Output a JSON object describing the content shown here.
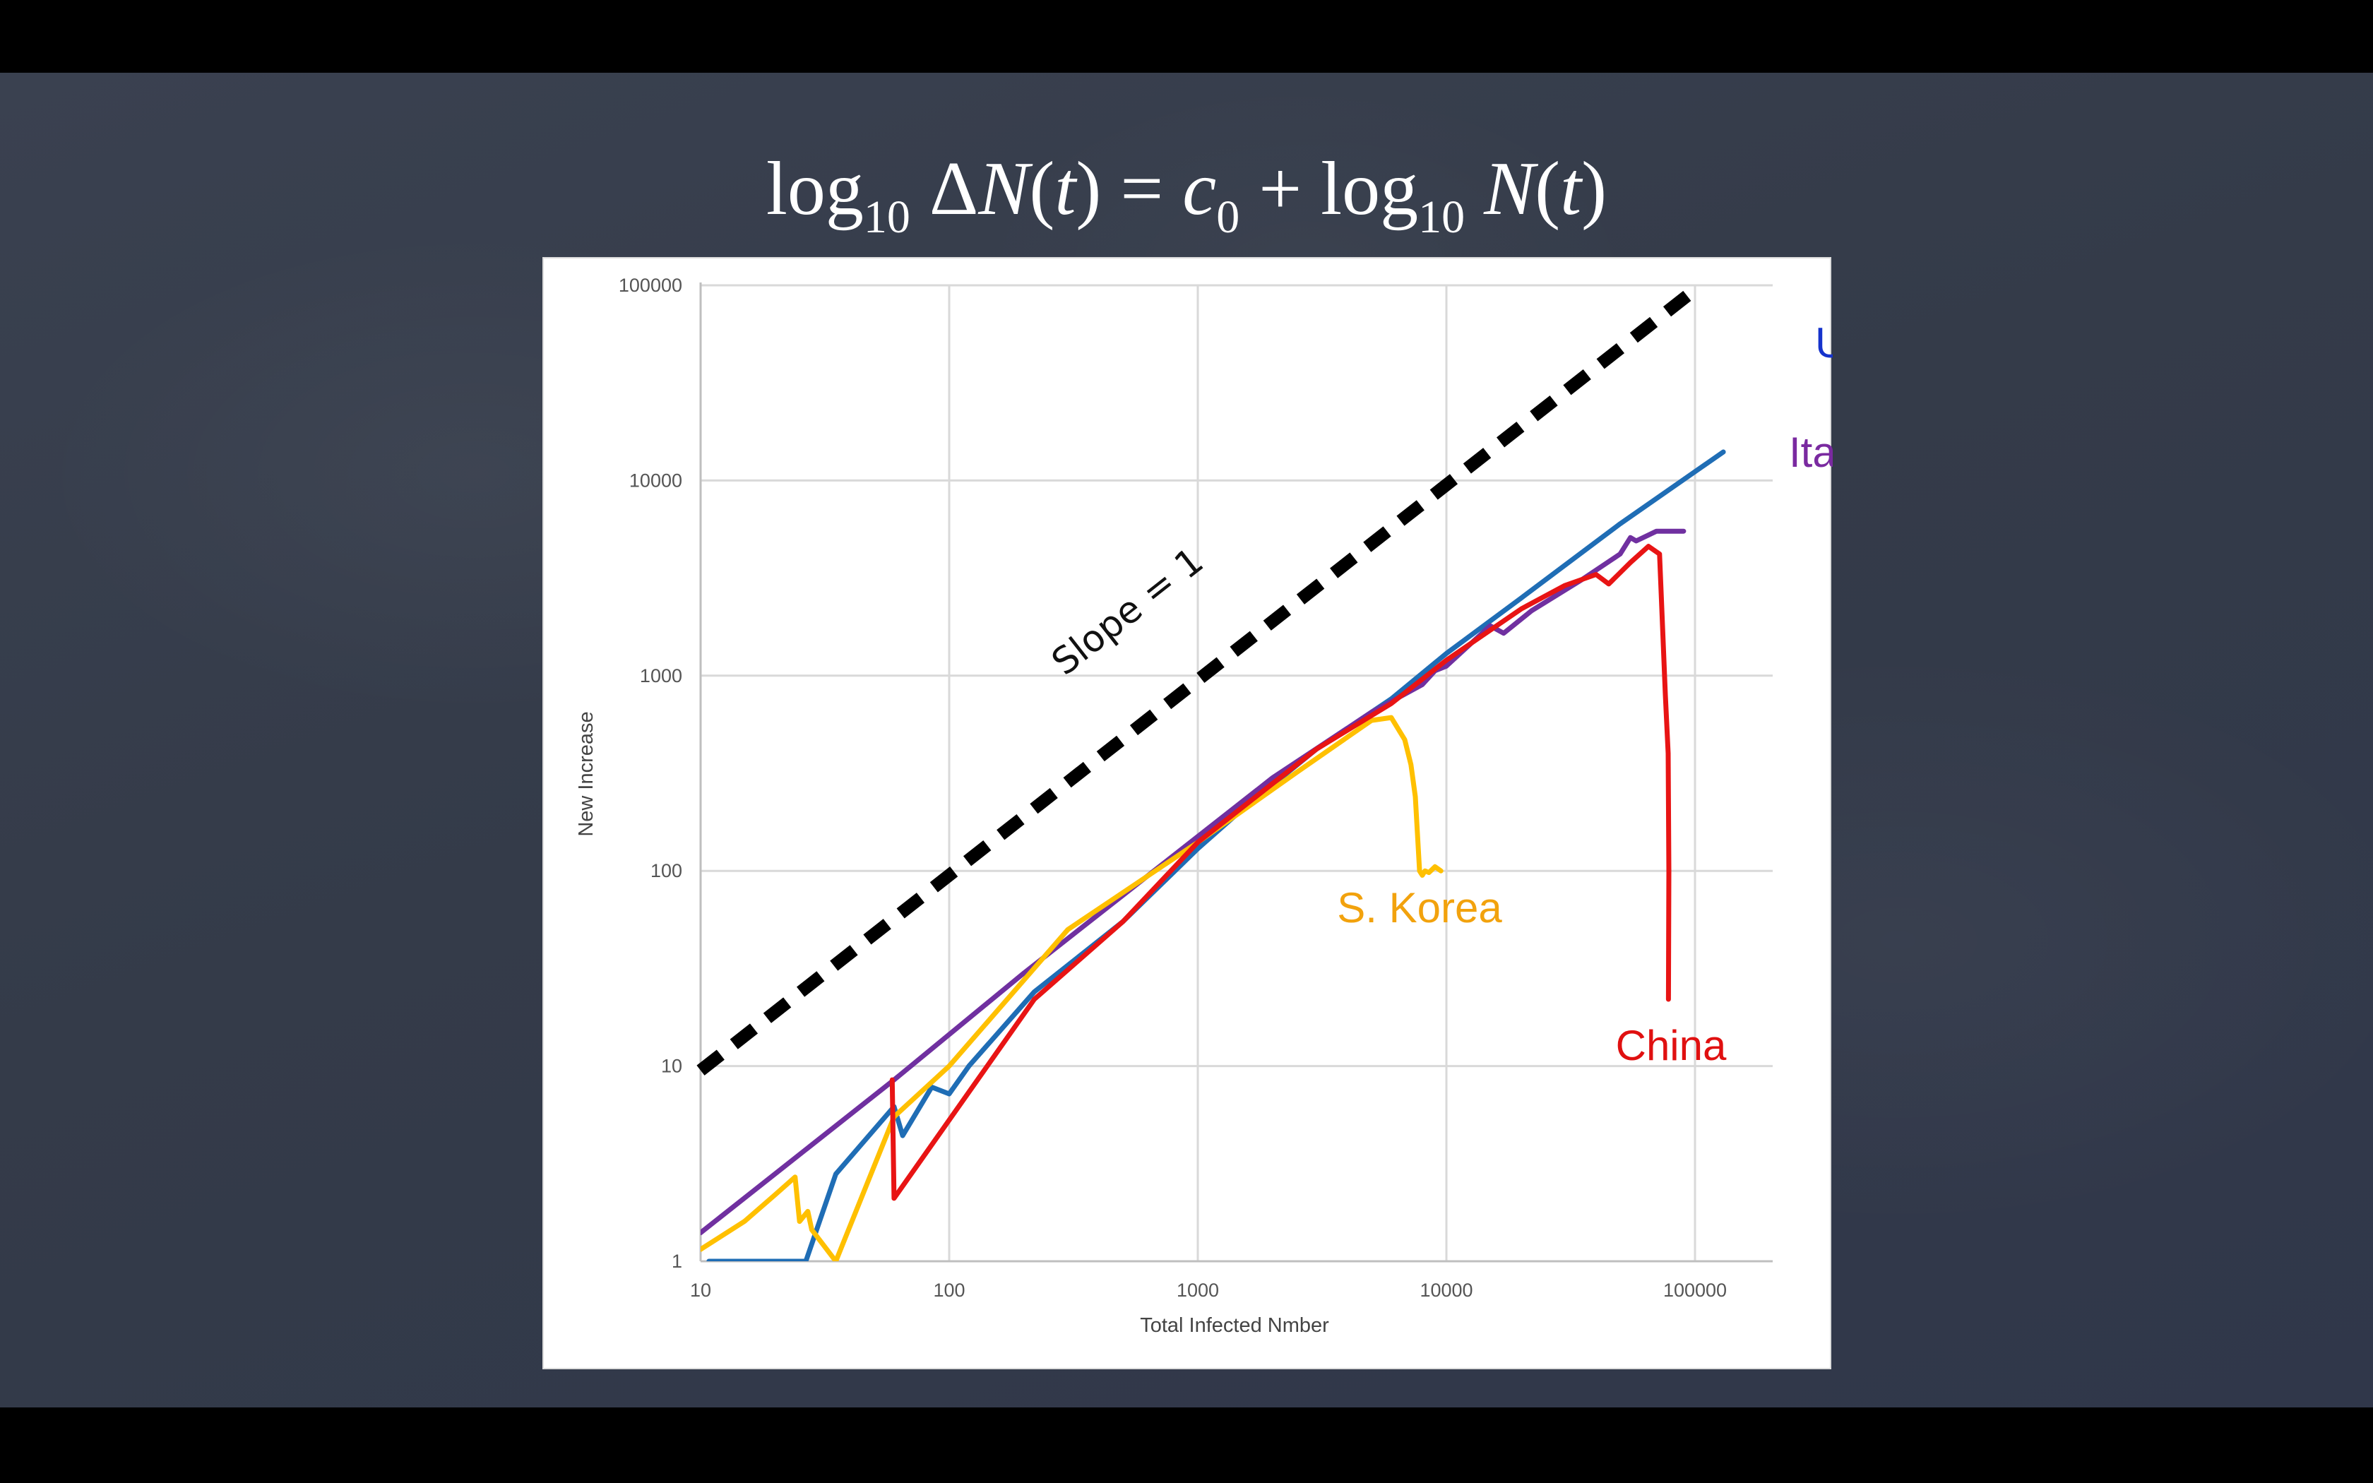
{
  "slide": {
    "background": "#363d4b",
    "title": {
      "parts": [
        {
          "text": "log",
          "style": "normal"
        },
        {
          "text": "10",
          "style": "sub"
        },
        {
          "text": " Δ",
          "style": "normal"
        },
        {
          "text": "N",
          "style": "it"
        },
        {
          "text": "(",
          "style": "normal"
        },
        {
          "text": "t",
          "style": "it"
        },
        {
          "text": ") = ",
          "style": "normal"
        },
        {
          "text": "c",
          "style": "it"
        },
        {
          "text": "0",
          "style": "sub"
        },
        {
          "text": " + log",
          "style": "normal"
        },
        {
          "text": "10",
          "style": "sub"
        },
        {
          "text": " ",
          "style": "normal"
        },
        {
          "text": "N",
          "style": "it"
        },
        {
          "text": "(",
          "style": "normal"
        },
        {
          "text": "t",
          "style": "it"
        },
        {
          "text": ")",
          "style": "normal"
        }
      ]
    }
  },
  "chart_data": {
    "type": "line",
    "xlabel": "Total Infected Nmber",
    "ylabel": "New Increase",
    "x_scale": "log",
    "y_scale": "log",
    "xlim": [
      10,
      200000
    ],
    "ylim": [
      1,
      100000
    ],
    "x_ticks": [
      "10",
      "100",
      "1000",
      "10000",
      "100000"
    ],
    "y_ticks": [
      "1",
      "10",
      "100",
      "1000",
      "10000",
      "100000"
    ],
    "grid": true,
    "legend": "inline labels",
    "reference_line": {
      "label": "Slope = 1",
      "style": "dashed",
      "color": "#000000",
      "points": [
        [
          10,
          9.5
        ],
        [
          100000,
          95000
        ]
      ]
    },
    "series": [
      {
        "name": "US",
        "color": "#1f6db5",
        "label_color": "#1533cc",
        "points": [
          [
            10.8,
            1.0
          ],
          [
            11.6,
            1.0
          ],
          [
            26.5,
            1.0
          ],
          [
            35,
            2.8
          ],
          [
            60,
            6.2
          ],
          [
            65,
            4.4
          ],
          [
            85,
            7.8
          ],
          [
            100,
            7.2
          ],
          [
            120,
            10
          ],
          [
            220,
            24
          ],
          [
            500,
            55
          ],
          [
            1000,
            130
          ],
          [
            1500,
            205
          ],
          [
            3000,
            420
          ],
          [
            6000,
            760
          ],
          [
            10000,
            1300
          ],
          [
            20000,
            2500
          ],
          [
            50000,
            6000
          ],
          [
            130000,
            14000
          ]
        ]
      },
      {
        "name": "Italy",
        "color": "#7030a0",
        "label_color": "#7a2aa0",
        "points": [
          [
            10,
            1.4
          ],
          [
            60,
            8.5
          ],
          [
            200,
            30
          ],
          [
            700,
            105
          ],
          [
            2000,
            300
          ],
          [
            5000,
            650
          ],
          [
            8000,
            900
          ],
          [
            9000,
            1060
          ],
          [
            10000,
            1120
          ],
          [
            15000,
            1800
          ],
          [
            17000,
            1650
          ],
          [
            22000,
            2150
          ],
          [
            35000,
            3100
          ],
          [
            50000,
            4200
          ],
          [
            55000,
            5100
          ],
          [
            58000,
            4900
          ],
          [
            70000,
            5500
          ],
          [
            90000,
            5500
          ]
        ]
      },
      {
        "name": "S. Korea",
        "color": "#ffc000",
        "label_color": "#f2a20d",
        "points": [
          [
            10,
            1.15
          ],
          [
            15,
            1.6
          ],
          [
            20,
            2.2
          ],
          [
            24,
            2.7
          ],
          [
            25,
            1.6
          ],
          [
            27,
            1.8
          ],
          [
            28,
            1.45
          ],
          [
            35,
            1.0
          ],
          [
            60,
            5.5
          ],
          [
            100,
            10
          ],
          [
            300,
            50
          ],
          [
            1000,
            140
          ],
          [
            2500,
            320
          ],
          [
            5000,
            590
          ],
          [
            6000,
            610
          ],
          [
            6800,
            470
          ],
          [
            7200,
            350
          ],
          [
            7500,
            240
          ],
          [
            7800,
            100
          ],
          [
            8000,
            95
          ],
          [
            8200,
            100
          ],
          [
            8500,
            98
          ],
          [
            9000,
            105
          ],
          [
            9500,
            100
          ]
        ]
      },
      {
        "name": "China",
        "color": "#e81414",
        "label_color": "#e01010",
        "points": [
          [
            59,
            8.5
          ],
          [
            60,
            2.1
          ],
          [
            220,
            22
          ],
          [
            500,
            55
          ],
          [
            1000,
            140
          ],
          [
            3000,
            420
          ],
          [
            6000,
            720
          ],
          [
            10000,
            1200
          ],
          [
            20000,
            2200
          ],
          [
            30000,
            2900
          ],
          [
            40000,
            3300
          ],
          [
            45000,
            2950
          ],
          [
            55000,
            3800
          ],
          [
            65000,
            4600
          ],
          [
            72000,
            4200
          ],
          [
            74000,
            1800
          ],
          [
            76000,
            800
          ],
          [
            78000,
            400
          ],
          [
            78500,
            100
          ],
          [
            78200,
            22
          ]
        ]
      }
    ]
  }
}
